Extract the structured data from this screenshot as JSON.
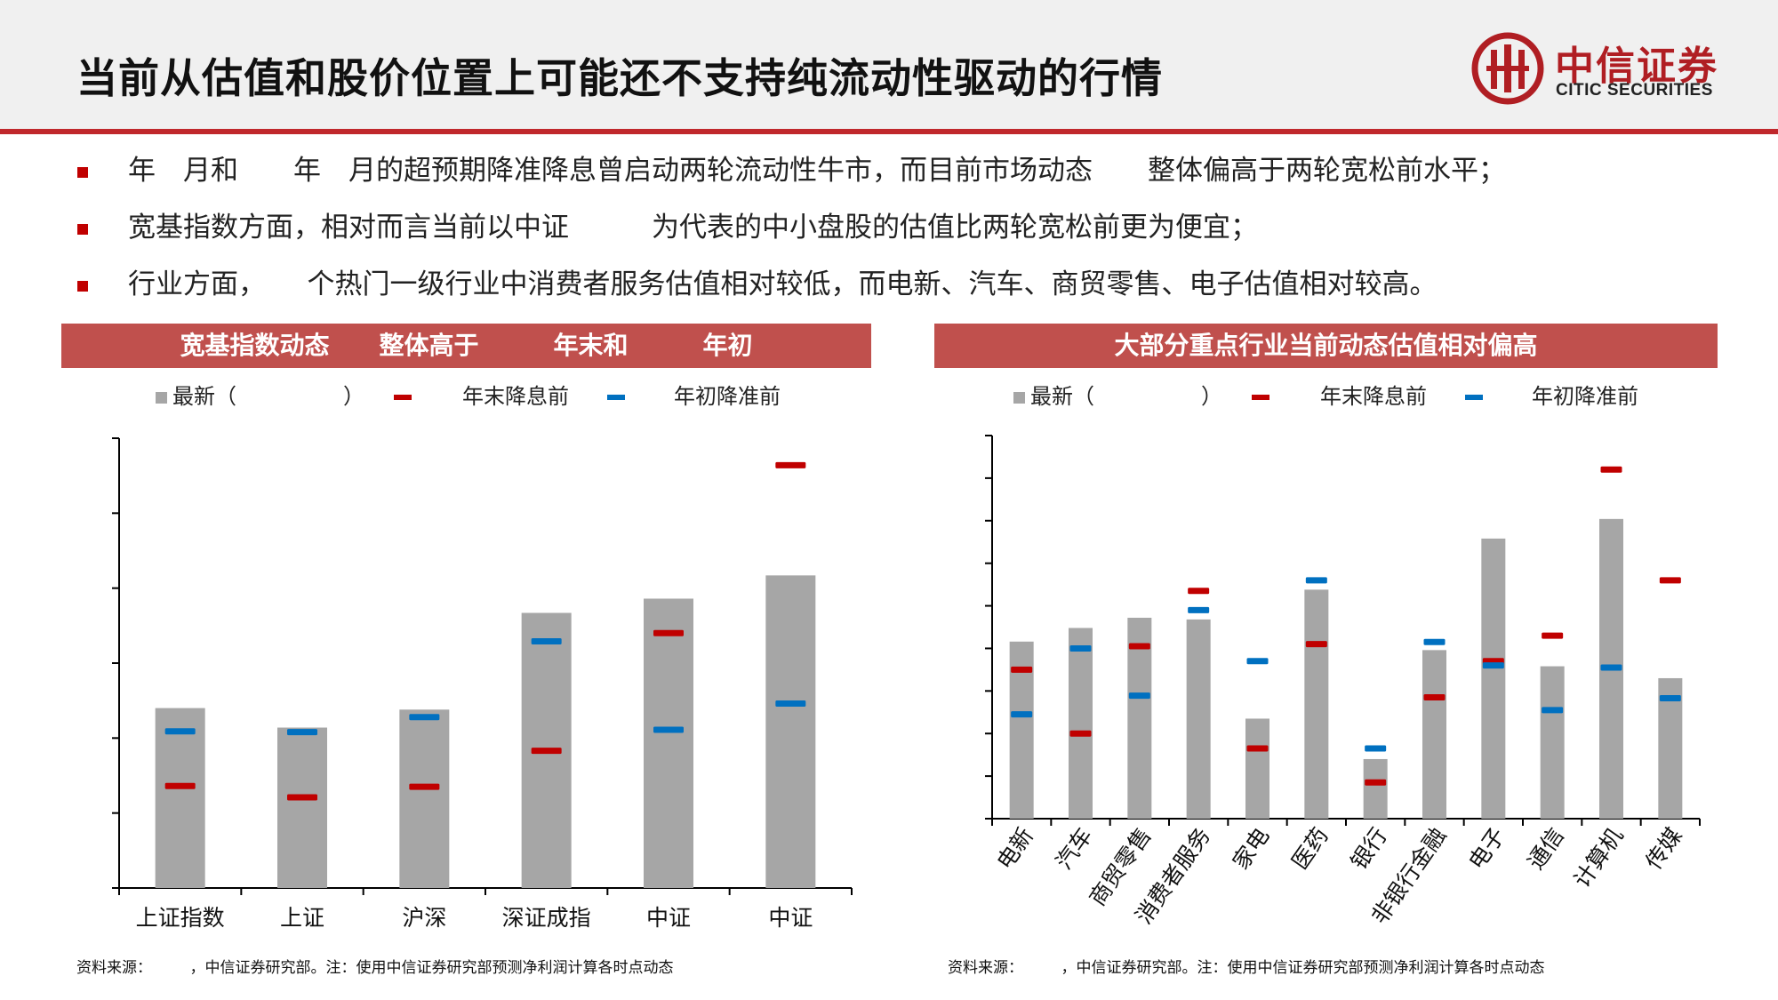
{
  "header": {
    "title": "当前从估值和股价位置上可能还不支持纯流动性驱动的行情",
    "logo_cn": "中信证券",
    "logo_en": "CITIC SECURITIES"
  },
  "bullets": [
    "年　月和　　年　月的超预期降准降息曾启动两轮流动性牛市，而目前市场动态　　整体偏高于两轮宽松前水平；",
    "宽基指数方面，相对而言当前以中证　　　为代表的中小盘股的估值比两轮宽松前更为便宜；",
    "行业方面，　　个热门一级行业中消费者服务估值相对较低，而电新、汽车、商贸零售、电子估值相对较高。"
  ],
  "left_panel": {
    "header": "宽基指数动态　　整体高于　　　年末和　　　年初",
    "legend": {
      "latest": "最新（　　　　　）",
      "end_cut": "年末降息前",
      "begin_cut": "年初降准前"
    },
    "source": "资料来源：　　　，中信证券研究部。注：使用中信证券研究部预测净利润计算各时点动态"
  },
  "right_panel": {
    "header": "大部分重点行业当前动态估值相对偏高",
    "legend": {
      "latest": "最新（　　　　　）",
      "end_cut": "年末降息前",
      "begin_cut": "年初降准前"
    },
    "source": "资料来源：　　　，中信证券研究部。注：使用中信证券研究部预测净利润计算各时点动态"
  },
  "colors": {
    "bar": "#a6a6a6",
    "end_cut": "#c00000",
    "begin_cut": "#0070c0",
    "accent": "#c0504d"
  },
  "chart_data": [
    {
      "type": "bar",
      "categories": [
        "上证指数",
        "上证",
        "沪深",
        "深证成指",
        "中证",
        "中证"
      ],
      "ylim": [
        0,
        60
      ],
      "series": [
        {
          "name": "最新",
          "style": "bar",
          "values": [
            24.0,
            21.4,
            23.8,
            36.7,
            38.6,
            41.7
          ]
        },
        {
          "name": "年末降息前",
          "style": "marker",
          "values": [
            13.6,
            12.1,
            13.5,
            18.3,
            34.0,
            56.4
          ]
        },
        {
          "name": "年初降准前",
          "style": "marker",
          "values": [
            20.9,
            20.8,
            22.8,
            32.9,
            21.1,
            24.6
          ]
        }
      ]
    },
    {
      "type": "bar",
      "categories": [
        "电新",
        "汽车",
        "商贸零售",
        "消费者服务",
        "家电",
        "医药",
        "银行",
        "非银行金融",
        "电子",
        "通信",
        "计算机",
        "传媒"
      ],
      "ylim": [
        0,
        90
      ],
      "series": [
        {
          "name": "最新",
          "style": "bar",
          "values": [
            41.6,
            44.8,
            47.2,
            46.8,
            23.5,
            53.8,
            14.0,
            39.6,
            65.8,
            35.8,
            70.4,
            33.0
          ]
        },
        {
          "name": "年末降息前",
          "style": "marker",
          "values": [
            35.0,
            20.0,
            40.5,
            53.5,
            16.5,
            41.0,
            8.5,
            28.5,
            37.0,
            43.0,
            82.0,
            56.0
          ]
        },
        {
          "name": "年初降准前",
          "style": "marker",
          "values": [
            24.5,
            40.0,
            28.9,
            49.0,
            37.0,
            56.0,
            16.5,
            41.5,
            36.0,
            25.5,
            35.5,
            28.3
          ]
        }
      ]
    }
  ]
}
